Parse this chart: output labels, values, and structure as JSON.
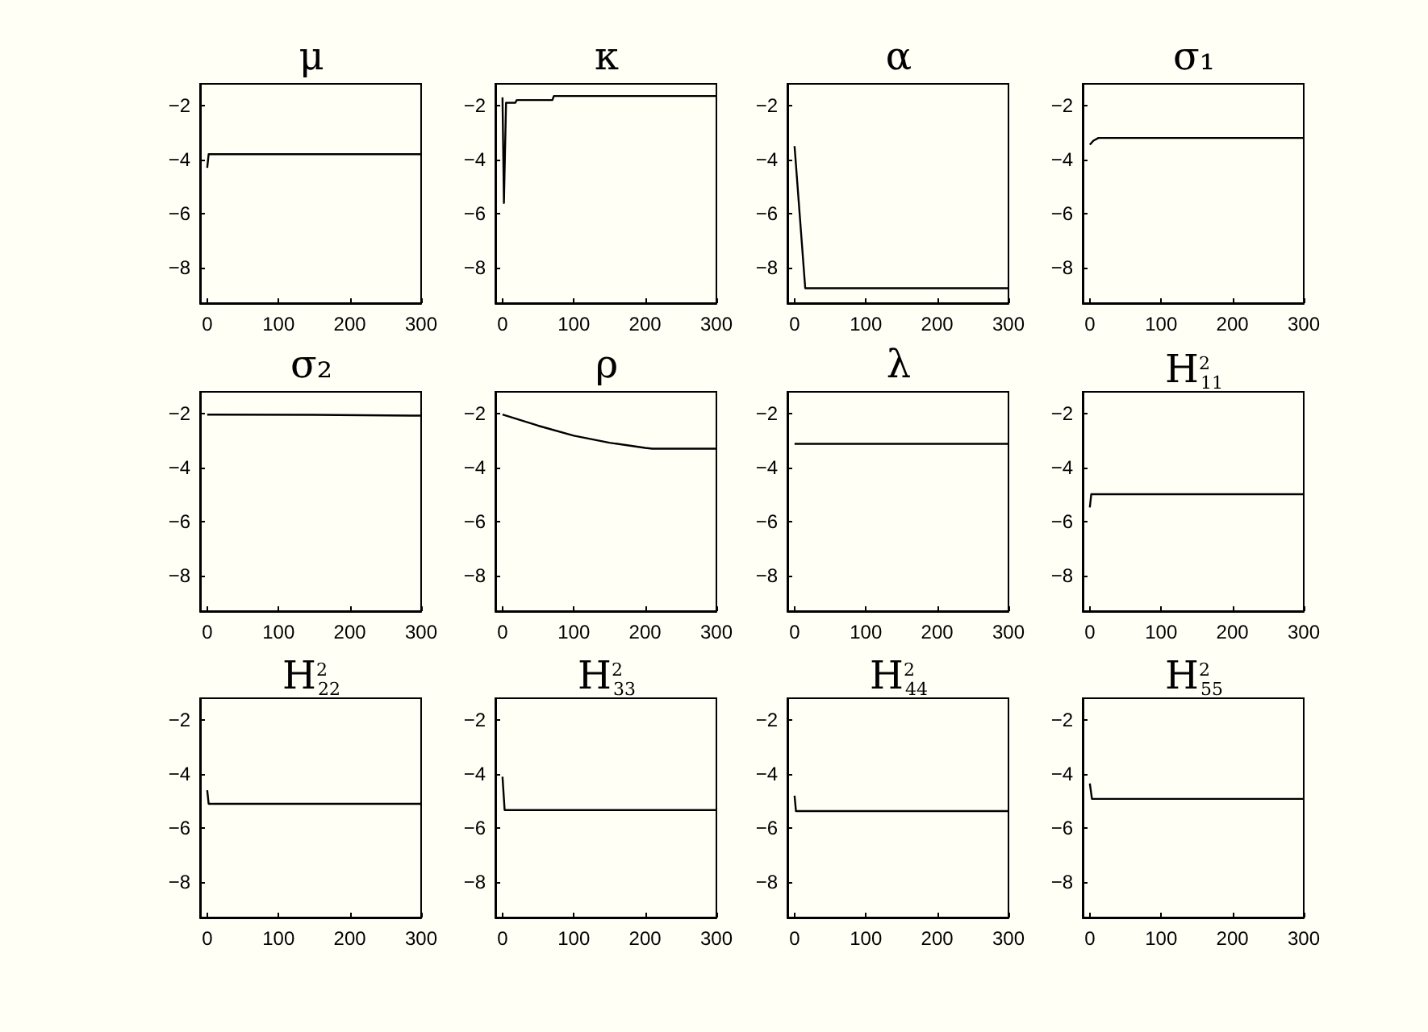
{
  "chart_data": [
    {
      "type": "line",
      "title": "μ",
      "x": [
        0,
        2,
        300
      ],
      "values": [
        -4.3,
        -3.8,
        -3.8
      ],
      "color": "#000000",
      "xlim": [
        -10,
        300
      ],
      "ylim": [
        -9.3,
        -1.2
      ],
      "xticks": [
        0,
        100,
        200,
        300
      ],
      "yticks": [
        -8,
        -6,
        -4,
        -2
      ],
      "marker": "none"
    },
    {
      "type": "line",
      "title": "κ",
      "x": [
        0,
        2,
        5,
        18,
        20,
        70,
        72,
        300
      ],
      "values": [
        -1.7,
        -5.6,
        -1.9,
        -1.9,
        -1.8,
        -1.8,
        -1.65,
        -1.65
      ],
      "color": "#000000",
      "xlim": [
        -10,
        300
      ],
      "ylim": [
        -9.3,
        -1.2
      ],
      "xticks": [
        0,
        100,
        200,
        300
      ],
      "yticks": [
        -8,
        -6,
        -4,
        -2
      ],
      "marker": "none"
    },
    {
      "type": "line",
      "title": "α",
      "x": [
        0,
        15,
        300
      ],
      "values": [
        -3.5,
        -8.75,
        -8.75
      ],
      "color": "#000000",
      "xlim": [
        -10,
        300
      ],
      "ylim": [
        -9.3,
        -1.2
      ],
      "xticks": [
        0,
        100,
        200,
        300
      ],
      "yticks": [
        -8,
        -6,
        -4,
        -2
      ],
      "marker": "none"
    },
    {
      "type": "line",
      "title": "σ₁",
      "x": [
        0,
        5,
        12,
        300
      ],
      "values": [
        -3.45,
        -3.3,
        -3.2,
        -3.2
      ],
      "color": "#000000",
      "xlim": [
        -10,
        300
      ],
      "ylim": [
        -9.3,
        -1.2
      ],
      "xticks": [
        0,
        100,
        200,
        300
      ],
      "yticks": [
        -8,
        -6,
        -4,
        -2
      ],
      "marker": "none"
    },
    {
      "type": "line",
      "title": "σ₂",
      "x": [
        0,
        150,
        300
      ],
      "values": [
        -2.04,
        -2.05,
        -2.08
      ],
      "color": "#000000",
      "xlim": [
        -10,
        300
      ],
      "ylim": [
        -9.3,
        -1.2
      ],
      "xticks": [
        0,
        100,
        200,
        300
      ],
      "yticks": [
        -8,
        -6,
        -4,
        -2
      ],
      "marker": "none"
    },
    {
      "type": "line",
      "title": "ρ",
      "x": [
        0,
        50,
        100,
        150,
        200,
        210,
        300
      ],
      "values": [
        -2.04,
        -2.45,
        -2.82,
        -3.08,
        -3.27,
        -3.3,
        -3.3
      ],
      "color": "#000000",
      "xlim": [
        -10,
        300
      ],
      "ylim": [
        -9.3,
        -1.2
      ],
      "xticks": [
        0,
        100,
        200,
        300
      ],
      "yticks": [
        -8,
        -6,
        -4,
        -2
      ],
      "marker": "none"
    },
    {
      "type": "line",
      "title": "λ",
      "x": [
        0,
        300
      ],
      "values": [
        -3.12,
        -3.12
      ],
      "color": "#000000",
      "xlim": [
        -10,
        300
      ],
      "ylim": [
        -9.3,
        -1.2
      ],
      "xticks": [
        0,
        100,
        200,
        300
      ],
      "yticks": [
        -8,
        -6,
        -4,
        -2
      ],
      "marker": "none"
    },
    {
      "type": "line",
      "title": "H$^{2}$$_{11}$",
      "x": [
        0,
        2,
        300
      ],
      "values": [
        -5.47,
        -4.98,
        -4.98
      ],
      "color": "#000000",
      "xlim": [
        -10,
        300
      ],
      "ylim": [
        -9.3,
        -1.2
      ],
      "xticks": [
        0,
        100,
        200,
        300
      ],
      "yticks": [
        -8,
        -6,
        -4,
        -2
      ],
      "marker": "none"
    },
    {
      "type": "line",
      "title": "H$^{2}$$_{22}$",
      "x": [
        0,
        2,
        300
      ],
      "values": [
        -4.6,
        -5.1,
        -5.1
      ],
      "color": "#000000",
      "xlim": [
        -10,
        300
      ],
      "ylim": [
        -9.3,
        -1.2
      ],
      "xticks": [
        0,
        100,
        200,
        300
      ],
      "yticks": [
        -8,
        -6,
        -4,
        -2
      ],
      "marker": "none"
    },
    {
      "type": "line",
      "title": "H$^{2}$$_{33}$",
      "x": [
        0,
        3,
        300
      ],
      "values": [
        -4.1,
        -5.33,
        -5.33
      ],
      "color": "#000000",
      "xlim": [
        -10,
        300
      ],
      "ylim": [
        -9.3,
        -1.2
      ],
      "xticks": [
        0,
        100,
        200,
        300
      ],
      "yticks": [
        -8,
        -6,
        -4,
        -2
      ],
      "marker": "none"
    },
    {
      "type": "line",
      "title": "H$^{2}$$_{44}$",
      "x": [
        0,
        2,
        300
      ],
      "values": [
        -4.8,
        -5.37,
        -5.37
      ],
      "color": "#000000",
      "xlim": [
        -10,
        300
      ],
      "ylim": [
        -9.3,
        -1.2
      ],
      "xticks": [
        0,
        100,
        200,
        300
      ],
      "yticks": [
        -8,
        -6,
        -4,
        -2
      ],
      "marker": "none"
    },
    {
      "type": "line",
      "title": "H$^{2}$$_{55}$",
      "x": [
        0,
        3,
        300
      ],
      "values": [
        -4.35,
        -4.92,
        -4.92
      ],
      "color": "#000000",
      "xlim": [
        -10,
        300
      ],
      "ylim": [
        -9.3,
        -1.2
      ],
      "xticks": [
        0,
        100,
        200,
        300
      ],
      "yticks": [
        -8,
        -6,
        -4,
        -2
      ],
      "marker": "none"
    }
  ]
}
